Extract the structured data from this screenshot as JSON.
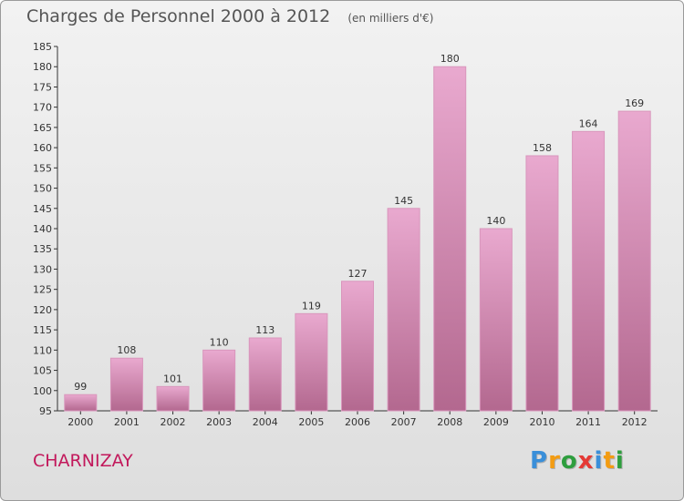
{
  "chart_data": {
    "type": "bar",
    "title": "Charges de Personnel 2000 à 2012",
    "unit_note": "(en milliers d'€)",
    "categories": [
      "2000",
      "2001",
      "2002",
      "2003",
      "2004",
      "2005",
      "2006",
      "2007",
      "2008",
      "2009",
      "2010",
      "2011",
      "2012"
    ],
    "values": [
      99,
      108,
      101,
      110,
      113,
      119,
      127,
      145,
      180,
      140,
      158,
      164,
      169
    ],
    "ylim": [
      95,
      185
    ],
    "yticks": [
      95,
      100,
      105,
      110,
      115,
      120,
      125,
      130,
      135,
      140,
      145,
      150,
      155,
      160,
      165,
      170,
      175,
      180,
      185
    ],
    "grid": false,
    "xlabel": "",
    "ylabel": ""
  },
  "footer": {
    "commune": "CHARNIZAY",
    "logo_text": "Proxiti",
    "logo_letters": [
      {
        "ch": "P",
        "color": "#3a8fd9"
      },
      {
        "ch": "r",
        "color": "#f39c12"
      },
      {
        "ch": "o",
        "color": "#2e9e3e"
      },
      {
        "ch": "x",
        "color": "#e53935"
      },
      {
        "ch": "i",
        "color": "#3a8fd9"
      },
      {
        "ch": "t",
        "color": "#f39c12"
      },
      {
        "ch": "i",
        "color": "#2e9e3e"
      }
    ]
  },
  "colors": {
    "bar_light": "#e9a9cf",
    "bar_dark": "#b3688f",
    "axis": "#333333",
    "text": "#333333",
    "commune": "#c2185b"
  }
}
